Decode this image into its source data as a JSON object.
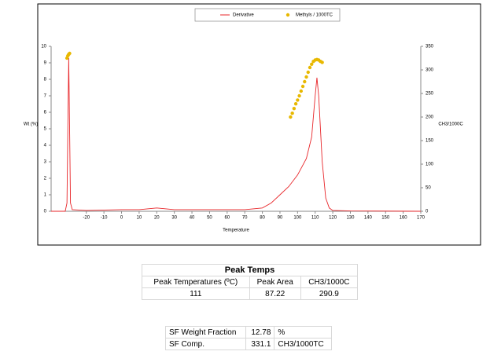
{
  "chart_data": {
    "type": "line",
    "legend_position": "top",
    "xlabel": "Temperature",
    "ylabel": "Wt (%)",
    "y2label": "CH3/1000C",
    "xlim": [
      -40,
      170
    ],
    "xticks": [
      -20,
      -10,
      0,
      10,
      20,
      30,
      40,
      50,
      60,
      70,
      80,
      90,
      100,
      110,
      120,
      130,
      140,
      150,
      160,
      170
    ],
    "ylim": [
      0,
      10
    ],
    "yticks": [
      0,
      1,
      2,
      3,
      4,
      5,
      6,
      7,
      8,
      9,
      10
    ],
    "y2lim": [
      0,
      350
    ],
    "y2ticks": [
      0,
      50,
      100,
      150,
      200,
      250,
      300,
      350
    ],
    "series": [
      {
        "name": "Derivative",
        "type": "line",
        "color": "#e8262a",
        "x": [
          -40,
          -32,
          -31,
          -30.5,
          -30,
          -29.5,
          -29,
          -28,
          -20,
          0,
          10,
          20,
          30,
          50,
          70,
          80,
          85,
          90,
          95,
          100,
          105,
          108,
          110,
          111,
          112,
          114,
          116,
          118,
          120,
          130,
          170
        ],
        "values": [
          0,
          0,
          0.5,
          5,
          9.3,
          5,
          0.5,
          0.1,
          0.05,
          0.1,
          0.1,
          0.2,
          0.1,
          0.1,
          0.1,
          0.2,
          0.5,
          1.0,
          1.5,
          2.2,
          3.2,
          4.5,
          7,
          8.1,
          7,
          3,
          0.8,
          0.2,
          0.05,
          0.02,
          0
        ]
      },
      {
        "name": "Methyls / 1000TC",
        "type": "scatter",
        "axis": "y2",
        "color": "#e8b800",
        "x": [
          -31,
          -30.5,
          -30,
          -29.5,
          96,
          97,
          98,
          99,
          100,
          101,
          102,
          103,
          104,
          105,
          106,
          107,
          108,
          109,
          110,
          111,
          112,
          113,
          114
        ],
        "values": [
          325,
          330,
          333,
          335,
          200,
          208,
          218,
          228,
          236,
          245,
          255,
          265,
          275,
          285,
          295,
          305,
          312,
          318,
          321,
          322,
          321,
          318,
          316
        ]
      }
    ]
  },
  "peak_table": {
    "title": "Peak Temps",
    "header": [
      "Peak Temperatures (ºC)",
      "Peak Area",
      "CH3/1000C"
    ],
    "row": [
      111,
      87.22,
      290.9
    ]
  },
  "sf_table": {
    "rows": [
      [
        "SF Weight Fraction",
        12.78,
        "%"
      ],
      [
        "SF Comp.",
        331.1,
        "CH3/1000TC"
      ]
    ]
  }
}
